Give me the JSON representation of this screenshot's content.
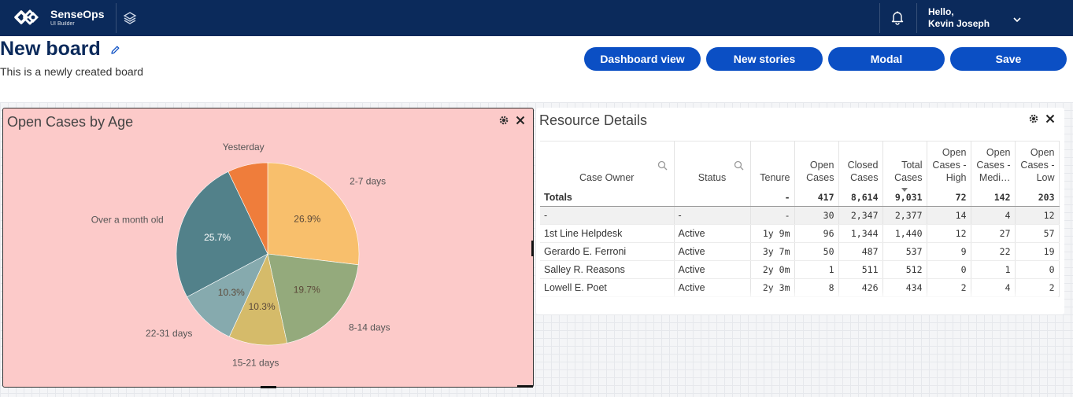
{
  "app": {
    "name": "SenseOps",
    "subtitle": "UI Builder"
  },
  "user": {
    "greeting": "Hello,",
    "name": "Kevin Joseph"
  },
  "board": {
    "title": "New board",
    "subtitle": "This is a newly created board"
  },
  "toolbar": {
    "dashboard_view": "Dashboard view",
    "new_stories": "New stories",
    "modal": "Modal",
    "save": "Save"
  },
  "pie_panel": {
    "title": "Open Cases by Age"
  },
  "chart_data": {
    "type": "pie",
    "slices": [
      {
        "label": "2-7 days",
        "value": 26.9,
        "display": "26.9%",
        "color": "#f8bf6c"
      },
      {
        "label": "8-14 days",
        "value": 19.7,
        "display": "19.7%",
        "color": "#94aa7c"
      },
      {
        "label": "15-21 days",
        "value": 10.3,
        "display": "10.3%",
        "color": "#d5bb6a"
      },
      {
        "label": "22-31 days",
        "value": 10.3,
        "display": "10.3%",
        "color": "#86aaae"
      },
      {
        "label": "Over a month old",
        "value": 25.7,
        "display": "25.7%",
        "color": "#52818a"
      },
      {
        "label": "Yesterday",
        "value": 7.1,
        "display": "",
        "color": "#ef7d3b"
      }
    ]
  },
  "table_panel": {
    "title": "Resource Details",
    "columns": [
      [
        "Case Owner"
      ],
      [
        "Status"
      ],
      [
        "Tenure"
      ],
      [
        "Open",
        "Cases"
      ],
      [
        "Closed",
        "Cases"
      ],
      [
        "Total",
        "Cases"
      ],
      [
        "Open",
        "Cases -",
        "High"
      ],
      [
        "Open",
        "Cases -",
        "Medi…"
      ],
      [
        "Open",
        "Cases -",
        "Low"
      ]
    ],
    "totals": [
      "Totals",
      "",
      "-",
      "417",
      "8,614",
      "9,031",
      "72",
      "142",
      "203"
    ],
    "rows": [
      [
        "-",
        "-",
        "-",
        "30",
        "2,347",
        "2,377",
        "14",
        "4",
        "12"
      ],
      [
        "1st Line Helpdesk",
        "Active",
        "1y 9m",
        "96",
        "1,344",
        "1,440",
        "12",
        "27",
        "57"
      ],
      [
        "Gerardo E. Ferroni",
        "Active",
        "3y 7m",
        "50",
        "487",
        "537",
        "9",
        "22",
        "19"
      ],
      [
        "Salley R. Reasons",
        "Active",
        "2y 0m",
        "1",
        "511",
        "512",
        "0",
        "1",
        "0"
      ],
      [
        "Lowell E. Poet",
        "Active",
        "2y 3m",
        "8",
        "426",
        "434",
        "2",
        "4",
        "2"
      ]
    ]
  },
  "colors": {
    "topbar": "#0b2a5b",
    "button": "#0b4fc4",
    "pie_panel_bg": "#fccac9"
  },
  "icons": [
    "senseops-logo-icon",
    "layers-icon",
    "bell-icon",
    "chevron-down-icon",
    "edit-icon",
    "settings-icon",
    "close-icon",
    "search-icon"
  ]
}
